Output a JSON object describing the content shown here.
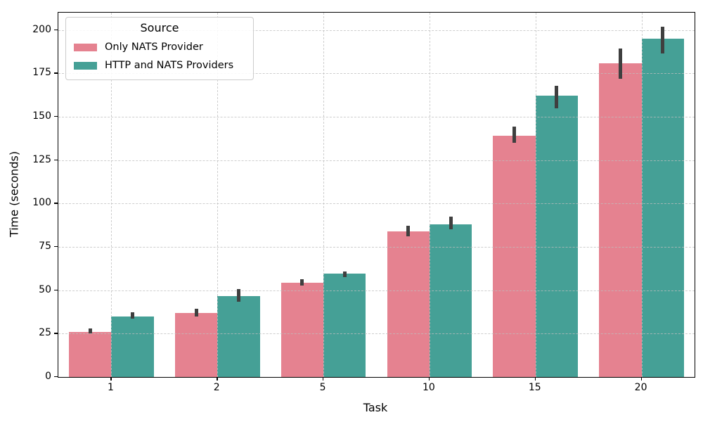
{
  "chart_data": {
    "type": "bar",
    "title": "",
    "xlabel": "Task",
    "ylabel": "Time (seconds)",
    "categories": [
      "1",
      "2",
      "5",
      "10",
      "15",
      "20"
    ],
    "series": [
      {
        "name": "Only NATS Provider",
        "color": "#e58290",
        "values": [
          26,
          37,
          54.5,
          84,
          139,
          181
        ],
        "ci_low": [
          25,
          35,
          52.5,
          81,
          135,
          172
        ],
        "ci_high": [
          28,
          39.5,
          56.5,
          87,
          144.5,
          189.5
        ]
      },
      {
        "name": "HTTP and NATS Providers",
        "color": "#45a096",
        "values": [
          35,
          46.5,
          59.5,
          88,
          162,
          195
        ],
        "ci_low": [
          33.5,
          43.5,
          57.5,
          85,
          155,
          186.5
        ],
        "ci_high": [
          37.5,
          50.5,
          61,
          92.5,
          168,
          202
        ]
      }
    ],
    "ylim": [
      0,
      210
    ],
    "yticks": [
      0,
      25,
      50,
      75,
      100,
      125,
      150,
      175,
      200
    ],
    "grid": "dashed",
    "grid_color": "#bebebe",
    "error_bar_color": "#3f3f3f",
    "legend": {
      "title": "Source",
      "position": "upper-left"
    }
  }
}
